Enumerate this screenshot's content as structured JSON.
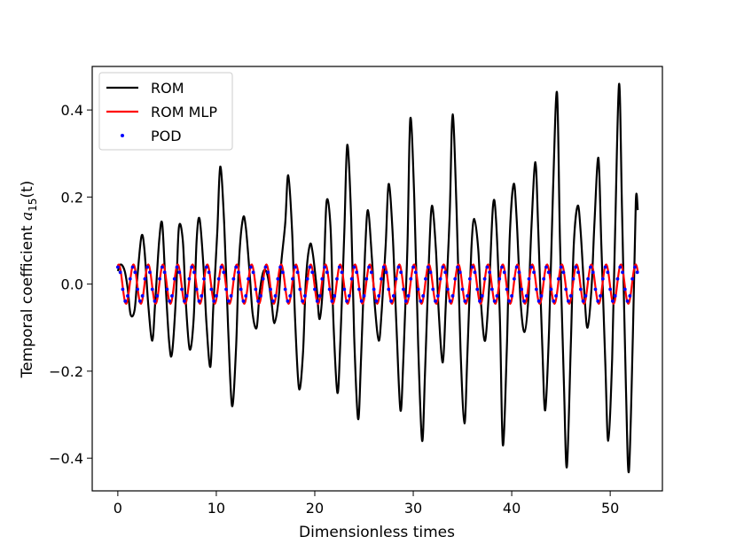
{
  "chart_data": {
    "type": "line",
    "title": "",
    "xlabel": "Dimensionless times",
    "ylabel_prefix": "Temporal coefficient ",
    "ylabel_symbol": "a",
    "ylabel_subscript": "15",
    "ylabel_suffix": "(t)",
    "xlim": [
      -2.6,
      55.3
    ],
    "ylim": [
      -0.475,
      0.5
    ],
    "xticks": [
      0,
      10,
      20,
      30,
      40,
      50
    ],
    "yticks": [
      -0.4,
      -0.2,
      0.0,
      0.2,
      0.4
    ],
    "xtick_labels": [
      "0",
      "10",
      "20",
      "30",
      "40",
      "50"
    ],
    "ytick_labels": [
      "−0.4",
      "−0.2",
      "0.0",
      "0.2",
      "0.4"
    ],
    "grid": false,
    "legend_position": "top-left",
    "series": [
      {
        "name": "ROM",
        "style": "line",
        "color": "#000000",
        "x": [
          0.0,
          0.3,
          0.7,
          1.0,
          1.3,
          1.7,
          2.0,
          2.4,
          2.7,
          3.1,
          3.5,
          3.8,
          4.2,
          4.5,
          4.8,
          5.2,
          5.5,
          5.9,
          6.2,
          6.6,
          6.9,
          7.3,
          7.7,
          8.0,
          8.3,
          8.7,
          9.0,
          9.4,
          9.7,
          10.1,
          10.4,
          10.8,
          11.2,
          11.6,
          12.0,
          12.3,
          12.7,
          13.0,
          13.4,
          13.7,
          14.1,
          14.4,
          14.8,
          15.2,
          15.6,
          15.9,
          16.3,
          16.6,
          17.0,
          17.3,
          17.7,
          18.0,
          18.4,
          18.8,
          19.1,
          19.5,
          19.8,
          20.2,
          20.5,
          20.9,
          21.2,
          21.6,
          21.9,
          22.3,
          22.6,
          23.0,
          23.3,
          23.7,
          24.0,
          24.4,
          24.7,
          25.1,
          25.4,
          25.8,
          26.1,
          26.5,
          26.8,
          27.2,
          27.5,
          27.9,
          28.3,
          28.7,
          29.0,
          29.4,
          29.7,
          30.1,
          30.5,
          30.9,
          31.2,
          31.6,
          31.9,
          32.3,
          32.6,
          33.0,
          33.3,
          33.7,
          34.0,
          34.4,
          34.8,
          35.2,
          35.5,
          35.9,
          36.2,
          36.6,
          36.9,
          37.3,
          37.7,
          38.1,
          38.4,
          38.8,
          39.1,
          39.5,
          39.8,
          40.2,
          40.5,
          40.9,
          41.3,
          41.7,
          42.0,
          42.4,
          42.7,
          43.1,
          43.4,
          43.8,
          44.2,
          44.6,
          44.9,
          45.3,
          45.6,
          46.0,
          46.3,
          46.7,
          47.0,
          47.4,
          47.7,
          48.1,
          48.4,
          48.8,
          49.1,
          49.5,
          49.8,
          50.2,
          50.5,
          50.9,
          51.2,
          51.6,
          51.9,
          52.3,
          52.6,
          52.8
        ],
        "y": [
          0.03,
          0.045,
          0.03,
          -0.01,
          -0.07,
          -0.06,
          0.02,
          0.11,
          0.08,
          -0.05,
          -0.13,
          -0.04,
          0.1,
          0.14,
          0.02,
          -0.13,
          -0.16,
          -0.03,
          0.13,
          0.1,
          -0.04,
          -0.15,
          -0.08,
          0.1,
          0.15,
          0.04,
          -0.09,
          -0.19,
          -0.05,
          0.12,
          0.27,
          0.14,
          -0.1,
          -0.28,
          -0.15,
          0.05,
          0.15,
          0.13,
          0.02,
          -0.07,
          -0.1,
          -0.02,
          0.03,
          0.02,
          -0.04,
          -0.09,
          -0.04,
          0.05,
          0.14,
          0.25,
          0.12,
          -0.08,
          -0.24,
          -0.16,
          0.01,
          0.09,
          0.07,
          -0.01,
          -0.08,
          0.02,
          0.19,
          0.13,
          -0.09,
          -0.25,
          -0.13,
          0.12,
          0.32,
          0.15,
          -0.12,
          -0.31,
          -0.17,
          0.07,
          0.17,
          0.06,
          -0.05,
          -0.13,
          -0.06,
          0.09,
          0.23,
          0.12,
          -0.1,
          -0.29,
          -0.17,
          0.08,
          0.38,
          0.2,
          -0.14,
          -0.36,
          -0.2,
          0.06,
          0.18,
          0.08,
          -0.07,
          -0.18,
          -0.05,
          0.16,
          0.39,
          0.17,
          -0.15,
          -0.32,
          -0.16,
          0.08,
          0.15,
          0.08,
          -0.05,
          -0.13,
          -0.01,
          0.18,
          0.15,
          -0.08,
          -0.37,
          -0.15,
          0.11,
          0.23,
          0.15,
          -0.04,
          -0.11,
          -0.03,
          0.13,
          0.28,
          0.12,
          -0.14,
          -0.29,
          -0.1,
          0.22,
          0.44,
          0.1,
          -0.23,
          -0.42,
          -0.14,
          0.09,
          0.18,
          0.12,
          -0.03,
          -0.1,
          -0.01,
          0.14,
          0.29,
          0.09,
          -0.18,
          -0.36,
          -0.17,
          0.12,
          0.46,
          0.17,
          -0.24,
          -0.43,
          -0.12,
          0.19,
          0.17
        ]
      },
      {
        "name": "ROM MLP",
        "style": "line",
        "color": "#ff0000",
        "amplitude": 0.045,
        "period": 1.5,
        "phase": 1.2,
        "x_start": 0.0,
        "x_end": 52.8
      },
      {
        "name": "POD",
        "style": "dots",
        "color": "#0000ff",
        "amplitude": 0.04,
        "period": 1.5,
        "phase": 1.35,
        "x_start": 0.0,
        "x_end": 52.8,
        "x_step": 0.25
      }
    ]
  }
}
